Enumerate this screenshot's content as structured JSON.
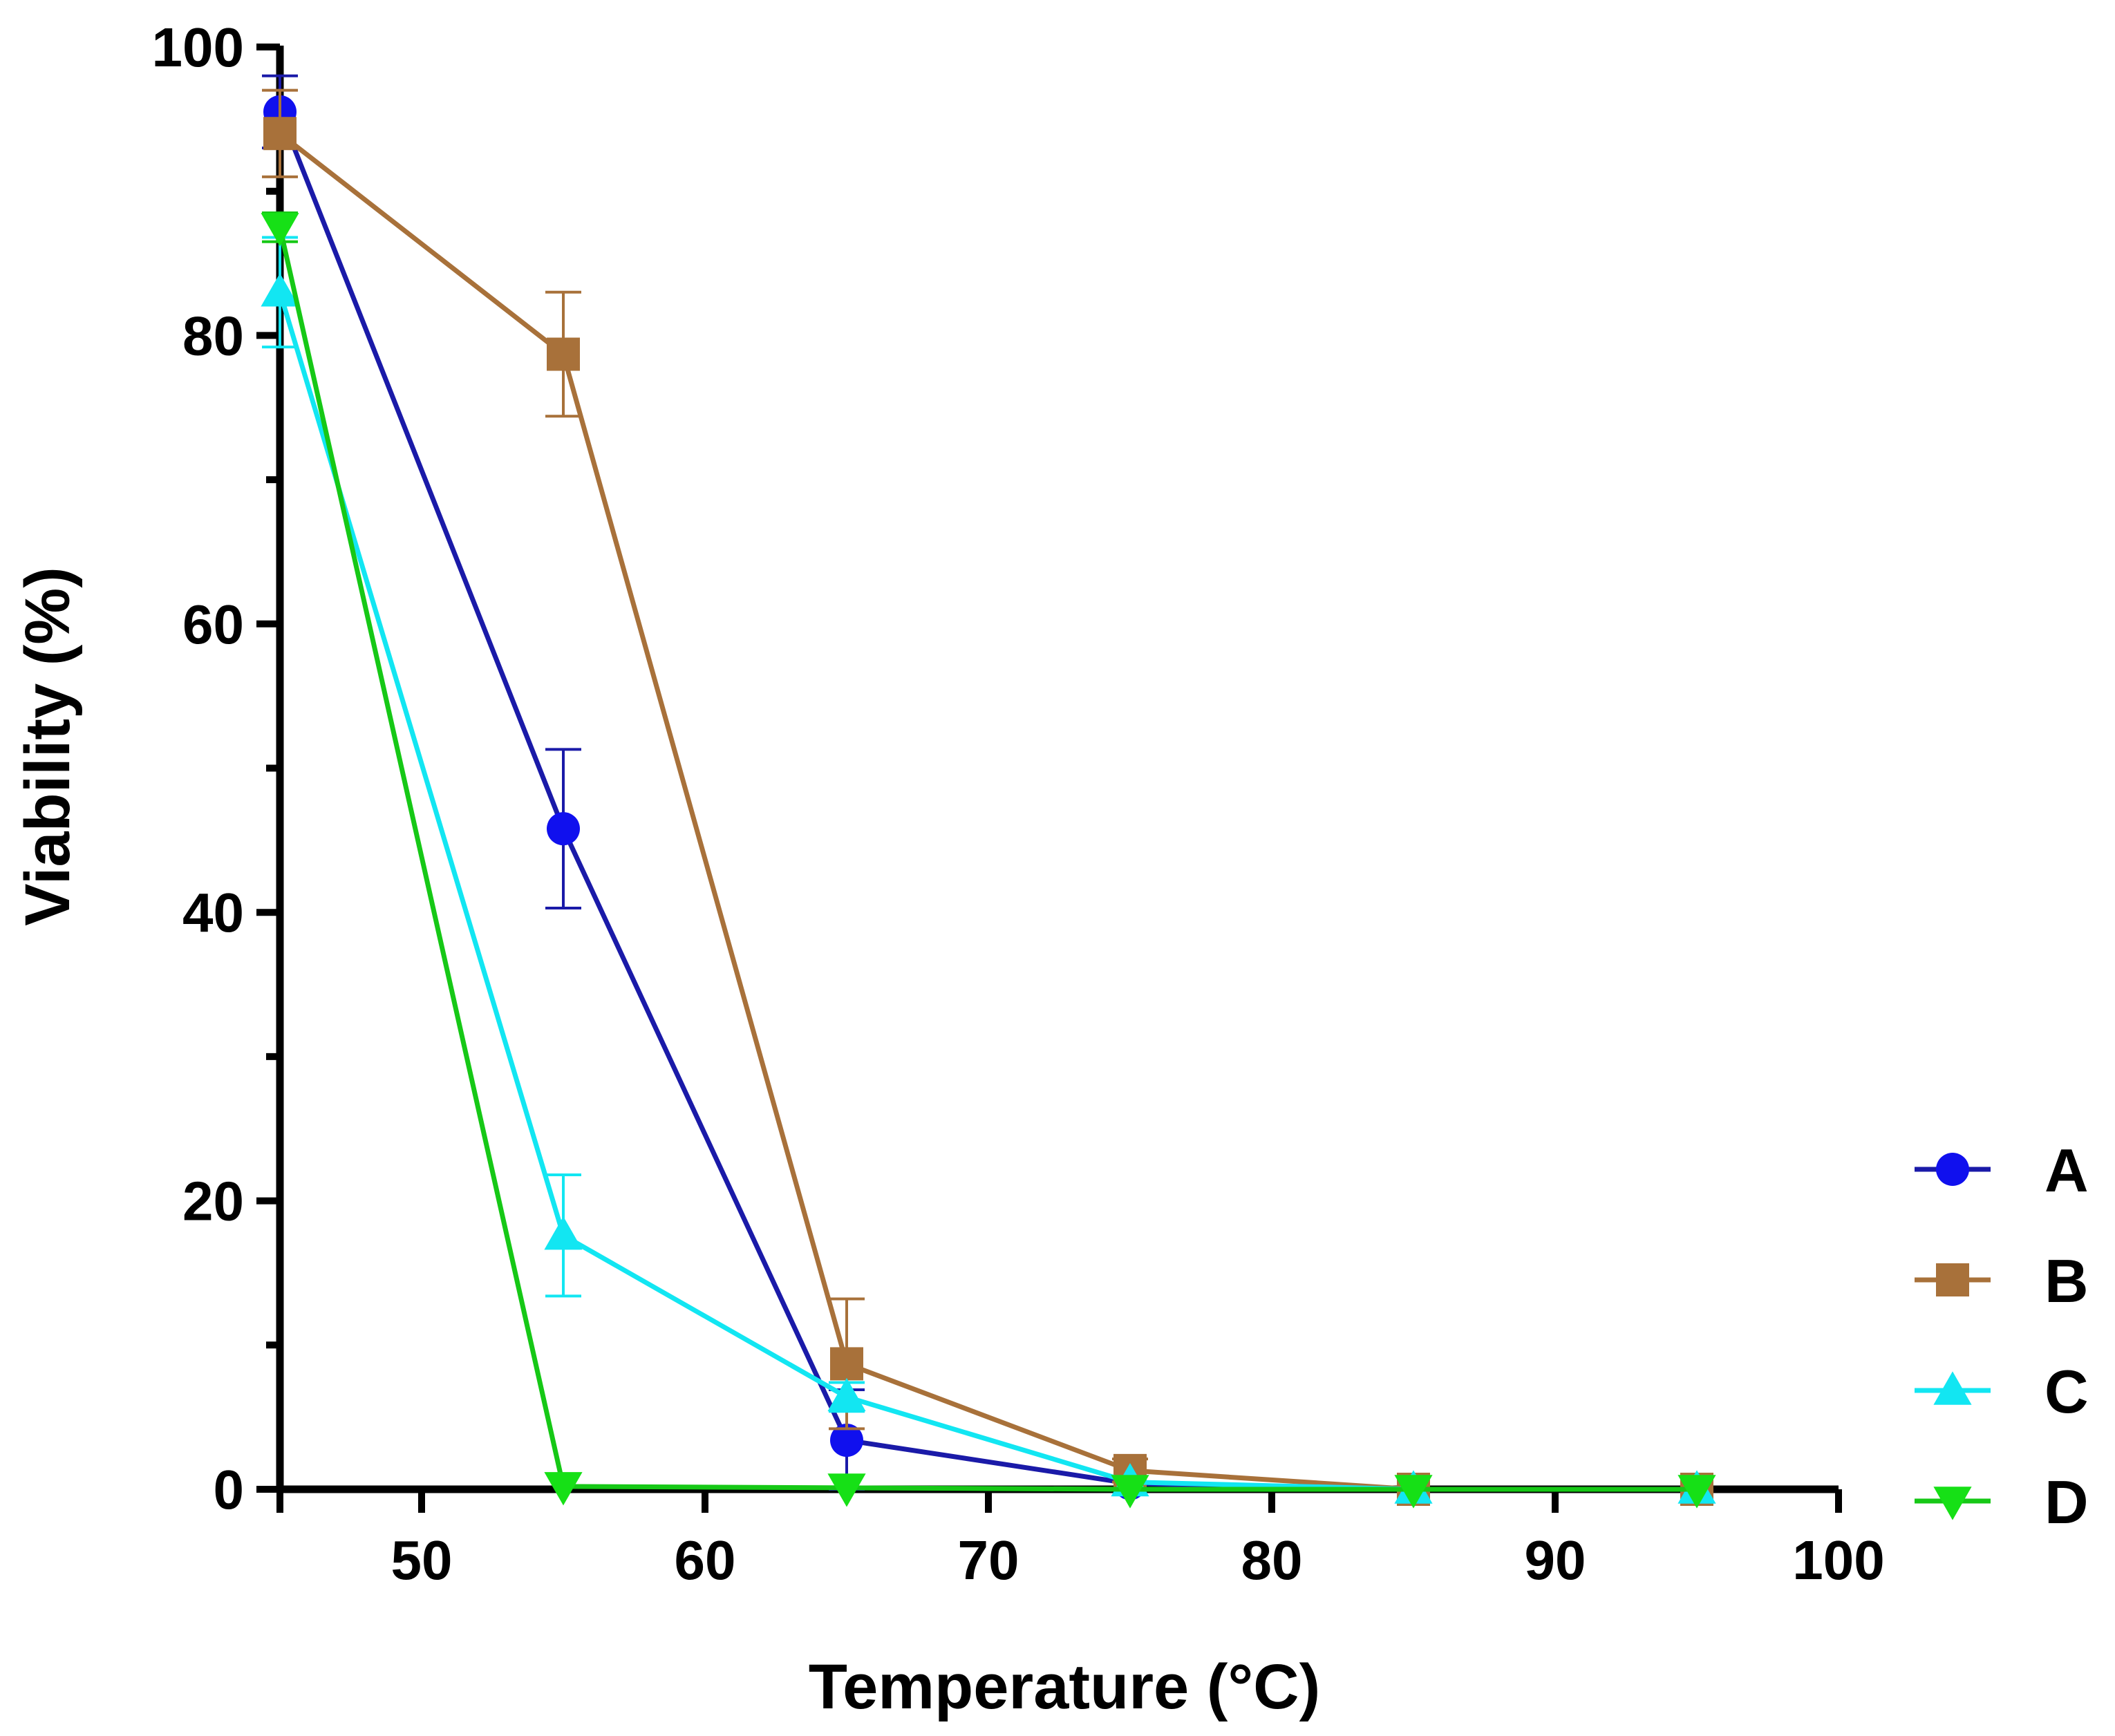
{
  "chart_data": {
    "type": "line",
    "title": "",
    "xlabel": "Temperature (°C)",
    "ylabel": "Viability (%)",
    "xlim": [
      45,
      100
    ],
    "ylim": [
      0,
      100
    ],
    "xticks": [
      50,
      60,
      70,
      80,
      90,
      100
    ],
    "yticks": [
      0,
      20,
      40,
      60,
      80,
      100
    ],
    "yminor": [
      10,
      30,
      50,
      70,
      90
    ],
    "legend_position": "bottom-right",
    "x": [
      45,
      55,
      65,
      75,
      85,
      95
    ],
    "series": [
      {
        "name": "A",
        "color": "#1010ee",
        "line_color": "#1a1aa8",
        "marker": "circle",
        "values": [
          95.5,
          45.8,
          3.4,
          0.4,
          0.0,
          0.0
        ],
        "errors": [
          2.5,
          5.5,
          3.5,
          0.3,
          0.0,
          0.0
        ]
      },
      {
        "name": "B",
        "color": "#a8713a",
        "line_color": "#a8713a",
        "marker": "square",
        "values": [
          94.0,
          78.7,
          8.7,
          1.3,
          0.0,
          0.0
        ],
        "errors": [
          3.0,
          4.3,
          4.5,
          0.8,
          0.0,
          0.0
        ]
      },
      {
        "name": "C",
        "color": "#12e6f2",
        "line_color": "#12e6f2",
        "marker": "triangle-up",
        "values": [
          83.0,
          17.6,
          6.4,
          0.5,
          0.0,
          0.0
        ],
        "errors": [
          3.8,
          4.2,
          1.0,
          0.3,
          0.0,
          0.0
        ]
      },
      {
        "name": "D",
        "color": "#16e016",
        "line_color": "#16c816",
        "marker": "triangle-down",
        "values": [
          87.5,
          0.2,
          0.1,
          0.0,
          0.0,
          0.0
        ],
        "errors": [
          1.0,
          0.0,
          0.0,
          0.0,
          0.0,
          0.0
        ]
      }
    ]
  }
}
